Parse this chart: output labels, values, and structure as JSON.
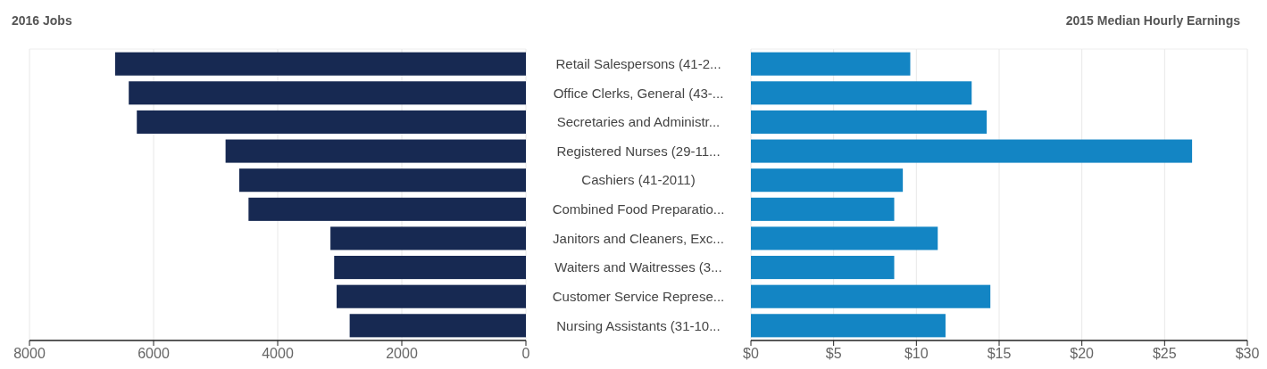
{
  "chart_data": [
    {
      "type": "bar",
      "orientation": "horizontal",
      "title": "2016 Jobs",
      "categories": [
        "Retail Salespersons (41-2...",
        "Office Clerks, General (43-...",
        "Secretaries and Administr...",
        "Registered Nurses (29-11...",
        "Cashiers (41-2011)",
        "Combined Food Preparatio...",
        "Janitors and Cleaners, Exc...",
        "Waiters and Waitresses (3...",
        "Customer Service Represe...",
        "Nursing Assistants (31-10..."
      ],
      "values": [
        6620,
        6400,
        6270,
        4840,
        4620,
        4470,
        3150,
        3090,
        3050,
        2840
      ],
      "color": "#172952",
      "xlim": [
        8000,
        0
      ],
      "xticks": [
        8000,
        6000,
        4000,
        2000,
        0
      ],
      "grid": "x"
    },
    {
      "type": "bar",
      "orientation": "horizontal",
      "title": "2015 Median Hourly Earnings",
      "categories": [
        null,
        null,
        null,
        null,
        null,
        null,
        null,
        null,
        null,
        null
      ],
      "values": [
        9.63,
        13.34,
        14.25,
        26.66,
        9.18,
        8.66,
        11.29,
        8.66,
        14.47,
        11.76
      ],
      "color": "#1385c4",
      "xlim": [
        0,
        30
      ],
      "xticks": [
        {
          "value": 0,
          "label": "$0"
        },
        {
          "value": 5,
          "label": "$5"
        },
        {
          "value": 10,
          "label": "$10"
        },
        {
          "value": 15,
          "label": "$15"
        },
        {
          "value": 20,
          "label": "$20"
        },
        {
          "value": 25,
          "label": "$25"
        },
        {
          "value": 30,
          "label": "$30"
        }
      ],
      "grid": "x"
    }
  ]
}
